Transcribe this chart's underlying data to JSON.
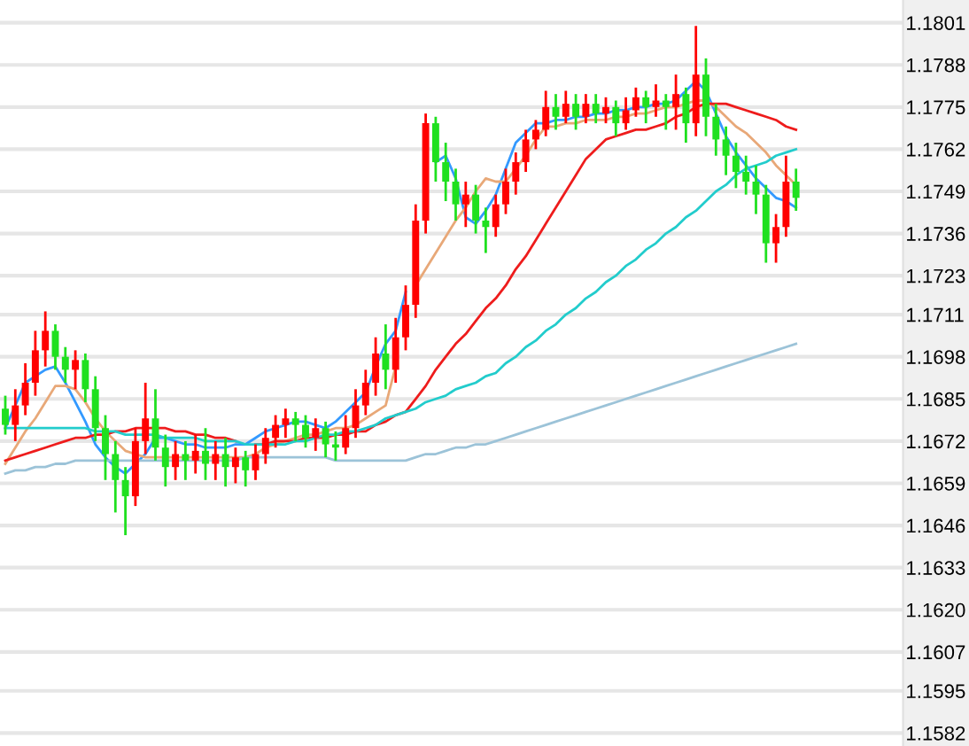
{
  "chart_data": {
    "type": "candlestick",
    "categories": [
      null,
      null,
      null,
      null,
      null,
      null,
      null,
      null,
      null,
      null,
      null,
      null,
      null,
      null,
      null,
      null,
      null,
      null,
      null,
      null,
      null,
      null,
      null,
      null,
      null,
      null,
      null,
      null,
      null,
      null,
      null,
      null,
      null,
      null,
      null,
      null,
      null,
      null,
      null,
      null,
      null,
      null,
      null,
      null,
      null,
      null,
      null,
      null,
      null,
      null,
      null,
      null,
      null,
      null,
      null,
      null,
      null,
      null,
      null,
      null,
      null,
      null,
      null,
      null,
      null,
      null,
      null,
      null,
      null,
      null,
      null,
      null,
      null,
      null,
      null,
      null,
      null,
      null,
      null,
      null
    ],
    "ohlc": [
      [
        1.1682,
        1.1686,
        1.1674,
        1.1677
      ],
      [
        1.1677,
        1.1688,
        1.1672,
        1.1683
      ],
      [
        1.1683,
        1.1696,
        1.168,
        1.169
      ],
      [
        1.169,
        1.1706,
        1.1686,
        1.17
      ],
      [
        1.17,
        1.1712,
        1.1695,
        1.1706
      ],
      [
        1.1706,
        1.1708,
        1.1694,
        1.1698
      ],
      [
        1.1698,
        1.1701,
        1.169,
        1.1694
      ],
      [
        1.1694,
        1.17,
        1.1688,
        1.1697
      ],
      [
        1.1697,
        1.1699,
        1.1684,
        1.1688
      ],
      [
        1.1688,
        1.1692,
        1.1672,
        1.1676
      ],
      [
        1.1676,
        1.168,
        1.166,
        1.1668
      ],
      [
        1.1668,
        1.1672,
        1.165,
        1.166
      ],
      [
        1.166,
        1.1664,
        1.1643,
        1.1655
      ],
      [
        1.1655,
        1.1676,
        1.1652,
        1.1672
      ],
      [
        1.1672,
        1.169,
        1.1668,
        1.1679
      ],
      [
        1.1679,
        1.1688,
        1.1666,
        1.167
      ],
      [
        1.167,
        1.1674,
        1.1658,
        1.1664
      ],
      [
        1.1664,
        1.1672,
        1.166,
        1.1668
      ],
      [
        1.1668,
        1.1672,
        1.166,
        1.1666
      ],
      [
        1.1666,
        1.1674,
        1.1662,
        1.1669
      ],
      [
        1.1669,
        1.1676,
        1.166,
        1.1665
      ],
      [
        1.1665,
        1.1672,
        1.166,
        1.1668
      ],
      [
        1.1668,
        1.1673,
        1.1658,
        1.1664
      ],
      [
        1.1664,
        1.167,
        1.1659,
        1.1667
      ],
      [
        1.1667,
        1.1669,
        1.1658,
        1.1663
      ],
      [
        1.1663,
        1.1671,
        1.166,
        1.1668
      ],
      [
        1.1668,
        1.1676,
        1.1665,
        1.1673
      ],
      [
        1.1673,
        1.168,
        1.167,
        1.1677
      ],
      [
        1.1677,
        1.1682,
        1.1673,
        1.1679
      ],
      [
        1.1679,
        1.1681,
        1.1672,
        1.1677
      ],
      [
        1.1677,
        1.168,
        1.167,
        1.1673
      ],
      [
        1.1673,
        1.1679,
        1.1669,
        1.1676
      ],
      [
        1.1676,
        1.1678,
        1.1667,
        1.1671
      ],
      [
        1.1671,
        1.1675,
        1.1666,
        1.167
      ],
      [
        1.167,
        1.168,
        1.1668,
        1.1676
      ],
      [
        1.1676,
        1.1688,
        1.1673,
        1.1683
      ],
      [
        1.1683,
        1.1694,
        1.168,
        1.169
      ],
      [
        1.169,
        1.1704,
        1.1686,
        1.1699
      ],
      [
        1.1699,
        1.1708,
        1.1688,
        1.1694
      ],
      [
        1.1694,
        1.171,
        1.169,
        1.1704
      ],
      [
        1.1704,
        1.172,
        1.17,
        1.1714
      ],
      [
        1.1714,
        1.1745,
        1.171,
        1.174
      ],
      [
        1.174,
        1.1773,
        1.1736,
        1.177
      ],
      [
        1.177,
        1.1772,
        1.1752,
        1.1758
      ],
      [
        1.1758,
        1.1764,
        1.1746,
        1.1752
      ],
      [
        1.1752,
        1.1756,
        1.174,
        1.1745
      ],
      [
        1.1745,
        1.1752,
        1.1738,
        1.1748
      ],
      [
        1.1748,
        1.1751,
        1.1736,
        1.174
      ],
      [
        1.174,
        1.1744,
        1.173,
        1.1738
      ],
      [
        1.1738,
        1.1748,
        1.1735,
        1.1745
      ],
      [
        1.1745,
        1.1756,
        1.1742,
        1.1752
      ],
      [
        1.1752,
        1.1761,
        1.1748,
        1.1758
      ],
      [
        1.1758,
        1.1768,
        1.1755,
        1.1765
      ],
      [
        1.1765,
        1.1771,
        1.1762,
        1.1768
      ],
      [
        1.1768,
        1.178,
        1.1766,
        1.1775
      ],
      [
        1.1775,
        1.1779,
        1.1768,
        1.1772
      ],
      [
        1.1772,
        1.178,
        1.177,
        1.1776
      ],
      [
        1.1776,
        1.1779,
        1.1768,
        1.1772
      ],
      [
        1.1772,
        1.1779,
        1.177,
        1.1776
      ],
      [
        1.1776,
        1.1779,
        1.177,
        1.1773
      ],
      [
        1.1773,
        1.1778,
        1.177,
        1.1775
      ],
      [
        1.1775,
        1.1777,
        1.1766,
        1.177
      ],
      [
        1.177,
        1.1778,
        1.1768,
        1.1774
      ],
      [
        1.1774,
        1.1781,
        1.1772,
        1.1778
      ],
      [
        1.1778,
        1.178,
        1.177,
        1.1775
      ],
      [
        1.1775,
        1.1782,
        1.1772,
        1.1777
      ],
      [
        1.1777,
        1.1779,
        1.1768,
        1.1775
      ],
      [
        1.1775,
        1.1785,
        1.1768,
        1.1779
      ],
      [
        1.1779,
        1.1781,
        1.1764,
        1.177
      ],
      [
        1.177,
        1.18,
        1.1766,
        1.1785
      ],
      [
        1.1785,
        1.179,
        1.1766,
        1.1772
      ],
      [
        1.1772,
        1.1776,
        1.176,
        1.1765
      ],
      [
        1.1765,
        1.1769,
        1.1754,
        1.176
      ],
      [
        1.176,
        1.1764,
        1.175,
        1.1755
      ],
      [
        1.1755,
        1.176,
        1.1748,
        1.1752
      ],
      [
        1.1752,
        1.1757,
        1.1742,
        1.1748
      ],
      [
        1.1748,
        1.1751,
        1.1727,
        1.1733
      ],
      [
        1.1733,
        1.1742,
        1.1727,
        1.1738
      ],
      [
        1.1738,
        1.176,
        1.1735,
        1.1752
      ],
      [
        1.1752,
        1.1756,
        1.1743,
        1.1747
      ]
    ],
    "colors": [
      "#1fe01f",
      "#ff0000",
      "#ff0000",
      "#ff0000",
      "#ff0000",
      "#1fe01f",
      "#1fe01f",
      "#ff0000",
      "#1fe01f",
      "#1fe01f",
      "#1fe01f",
      "#1fe01f",
      "#1fe01f",
      "#ff0000",
      "#ff0000",
      "#1fe01f",
      "#1fe01f",
      "#ff0000",
      "#1fe01f",
      "#ff0000",
      "#1fe01f",
      "#ff0000",
      "#1fe01f",
      "#ff0000",
      "#1fe01f",
      "#ff0000",
      "#ff0000",
      "#ff0000",
      "#ff0000",
      "#1fe01f",
      "#1fe01f",
      "#ff0000",
      "#1fe01f",
      "#1fe01f",
      "#ff0000",
      "#ff0000",
      "#ff0000",
      "#ff0000",
      "#1fe01f",
      "#ff0000",
      "#ff0000",
      "#ff0000",
      "#ff0000",
      "#1fe01f",
      "#1fe01f",
      "#1fe01f",
      "#ff0000",
      "#1fe01f",
      "#1fe01f",
      "#ff0000",
      "#ff0000",
      "#ff0000",
      "#ff0000",
      "#ff0000",
      "#ff0000",
      "#1fe01f",
      "#ff0000",
      "#1fe01f",
      "#ff0000",
      "#1fe01f",
      "#ff0000",
      "#1fe01f",
      "#ff0000",
      "#ff0000",
      "#1fe01f",
      "#ff0000",
      "#1fe01f",
      "#ff0000",
      "#1fe01f",
      "#ff0000",
      "#1fe01f",
      "#1fe01f",
      "#1fe01f",
      "#1fe01f",
      "#1fe01f",
      "#1fe01f",
      "#1fe01f",
      "#ff0000",
      "#ff0000",
      "#1fe01f"
    ],
    "series": [
      {
        "type": "line",
        "color": "#3399ff",
        "values": [
          1.1676,
          1.1683,
          1.169,
          1.1692,
          1.1694,
          1.1695,
          1.169,
          1.1684,
          1.1678,
          1.1671,
          1.1667,
          1.1664,
          1.1662,
          1.1665,
          1.1668,
          1.1673,
          1.1673,
          1.1672,
          1.1671,
          1.1671,
          1.167,
          1.167,
          1.167,
          1.1671,
          1.1671,
          1.1673,
          1.1675,
          1.1676,
          1.1677,
          1.1678,
          1.1678,
          1.1677,
          1.1676,
          1.1678,
          1.1681,
          1.1684,
          1.1687,
          1.1695,
          1.1702,
          1.1706,
          1.1718,
          null,
          null,
          1.1758,
          1.176,
          1.1753,
          1.1741,
          1.1739,
          1.1743,
          1.1748,
          1.1756,
          1.1764,
          1.1767,
          1.177,
          1.177,
          1.1771,
          1.1771,
          1.1772,
          1.1772,
          1.1773,
          1.1773,
          1.1774,
          1.1774,
          1.1775,
          1.1775,
          1.1776,
          1.1776,
          1.1777,
          1.178,
          1.1783,
          1.178,
          1.1773,
          1.1766,
          1.1761,
          1.1757,
          1.1753,
          1.175,
          1.1747,
          1.1746,
          1.1744
        ]
      },
      {
        "type": "line",
        "color": "#e8a878",
        "values": [
          1.1665,
          1.167,
          1.1675,
          1.1679,
          1.1684,
          1.1689,
          1.1689,
          1.1688,
          1.1684,
          1.1679,
          1.1675,
          1.1672,
          1.1669,
          1.1668,
          1.1667,
          1.1667,
          1.1667,
          1.1667,
          1.1667,
          1.1667,
          1.1667,
          1.1667,
          1.1667,
          1.1667,
          1.1667,
          1.1668,
          1.167,
          1.1671,
          1.1672,
          1.1673,
          1.1674,
          1.1674,
          1.1675,
          1.1676,
          1.1676,
          1.1677,
          1.1679,
          1.1681,
          1.1683,
          1.1695,
          null,
          1.172,
          1.1725,
          1.173,
          1.1735,
          1.174,
          1.1744,
          1.1749,
          1.1753,
          1.1752,
          1.1752,
          1.1756,
          1.176,
          1.1765,
          1.1769,
          1.1769,
          1.177,
          1.177,
          1.1771,
          1.1771,
          1.1771,
          1.1772,
          1.1772,
          1.1773,
          1.1773,
          1.1774,
          1.1775,
          1.1775,
          1.1776,
          1.1777,
          1.1777,
          1.1775,
          1.1772,
          1.1769,
          1.1767,
          1.1764,
          1.1761,
          1.1757,
          1.1754,
          1.1751
        ]
      },
      {
        "type": "line",
        "color": "#ee1c1c",
        "values": [
          1.1666,
          1.1667,
          1.1668,
          1.1669,
          1.167,
          1.1671,
          1.1672,
          1.1673,
          1.1673,
          1.1674,
          1.1674,
          1.1675,
          1.1675,
          1.1676,
          1.1676,
          1.1676,
          1.1676,
          1.1675,
          1.1675,
          1.1674,
          1.1674,
          1.1673,
          1.1673,
          1.1672,
          null,
          1.1671,
          1.1671,
          1.1672,
          1.1672,
          1.1672,
          1.1673,
          1.1673,
          1.1673,
          1.1674,
          1.1674,
          1.1675,
          1.1675,
          1.1677,
          1.1678,
          1.168,
          1.1681,
          1.1685,
          1.1689,
          1.1694,
          1.1698,
          1.1702,
          1.1705,
          1.1709,
          1.1713,
          1.1716,
          1.172,
          1.1725,
          1.1729,
          1.1734,
          1.1739,
          1.1744,
          1.1749,
          1.1754,
          1.1759,
          1.1762,
          1.1765,
          1.1766,
          1.1767,
          1.1768,
          1.1768,
          1.1769,
          1.177,
          1.1772,
          1.1773,
          1.1775,
          1.1776,
          1.1776,
          1.1776,
          1.1775,
          1.1774,
          1.1773,
          1.1772,
          1.1771,
          1.1769,
          1.1768
        ]
      },
      {
        "type": "line",
        "color": "#22cccc",
        "values": [
          1.1676,
          1.1676,
          1.1676,
          1.1676,
          1.1676,
          1.1676,
          1.1676,
          1.1676,
          1.1676,
          1.1675,
          1.1675,
          1.1675,
          1.1674,
          1.1674,
          1.1674,
          1.1674,
          1.1673,
          1.1673,
          1.1673,
          1.1673,
          1.1672,
          1.1672,
          1.1672,
          1.1672,
          1.1671,
          1.1671,
          1.1671,
          1.1671,
          1.1671,
          1.1672,
          1.1672,
          1.1673,
          1.1674,
          1.1674,
          1.1675,
          1.1675,
          1.1676,
          1.1677,
          1.1679,
          1.168,
          1.1681,
          1.1682,
          1.1684,
          1.1685,
          1.1686,
          1.1688,
          1.1689,
          1.169,
          1.1692,
          1.1693,
          1.1696,
          1.1698,
          1.1701,
          1.1703,
          1.1706,
          1.1708,
          1.1711,
          1.1713,
          1.1716,
          1.1718,
          1.1721,
          1.1723,
          1.1726,
          1.1728,
          1.1731,
          1.1733,
          1.1736,
          1.1738,
          1.1741,
          1.1743,
          1.1746,
          1.1749,
          1.1751,
          1.1754,
          1.1756,
          1.1757,
          1.1758,
          1.176,
          1.1761,
          1.1762
        ]
      },
      {
        "type": "line",
        "color": "#9cc3d8",
        "values": [
          1.1662,
          1.1663,
          1.1663,
          1.1664,
          1.1664,
          1.1665,
          1.1665,
          1.1666,
          1.1666,
          1.1666,
          1.1666,
          1.1666,
          1.1666,
          1.1666,
          1.1666,
          1.1666,
          1.1666,
          1.1666,
          1.1666,
          1.1666,
          1.1666,
          1.1666,
          1.1666,
          1.1666,
          1.1667,
          1.1667,
          1.1667,
          1.1667,
          1.1667,
          1.1667,
          1.1667,
          1.1667,
          1.1667,
          1.1666,
          1.1666,
          1.1666,
          1.1666,
          1.1666,
          1.1666,
          1.1666,
          1.1666,
          1.1667,
          1.1668,
          1.1668,
          1.1669,
          1.167,
          1.167,
          1.1671,
          1.1671,
          1.1672,
          1.1673,
          1.1674,
          1.1675,
          1.1676,
          1.1677,
          1.1678,
          1.1679,
          1.168,
          1.1681,
          1.1682,
          1.1683,
          1.1684,
          1.1685,
          1.1686,
          1.1687,
          1.1688,
          1.1689,
          1.169,
          1.1691,
          1.1692,
          1.1693,
          1.1694,
          1.1695,
          1.1696,
          1.1697,
          1.1698,
          1.1699,
          1.17,
          1.1701,
          1.1702
        ]
      }
    ],
    "ylim": [
      1.1578,
      1.1808
    ],
    "yticks": [
      1.1801,
      1.1788,
      1.1775,
      1.1762,
      1.1749,
      1.1736,
      1.1723,
      1.1711,
      1.1698,
      1.1685,
      1.1672,
      1.1659,
      1.1646,
      1.1633,
      {
        "value": 1.162,
        "label": "1.1620"
      },
      1.1607,
      1.1595,
      1.1582
    ],
    "grid": "y",
    "tick_labels": "y"
  }
}
